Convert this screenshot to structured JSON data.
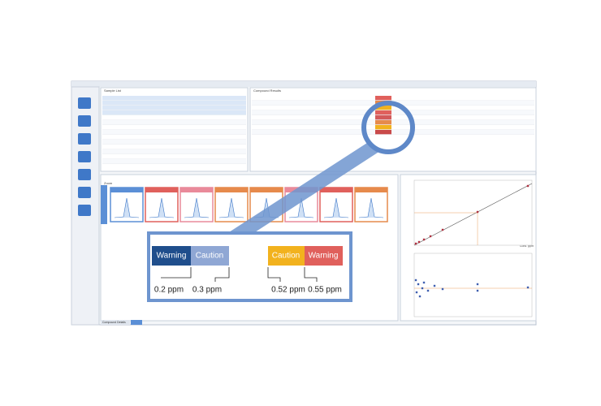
{
  "panels": {
    "sample_list": "Sample List",
    "compound_results": "Compound Results",
    "zoom": "Zoom",
    "compound_details_tab": "Compound Details",
    "x_axis_label": "Conc. ppm"
  },
  "callout": {
    "flags": [
      "Warning",
      "Caution",
      "Caution",
      "Warning"
    ],
    "thresholds": [
      "0.2 ppm",
      "0.3 ppm",
      "0.52 ppm",
      "0.55 ppm"
    ]
  }
}
